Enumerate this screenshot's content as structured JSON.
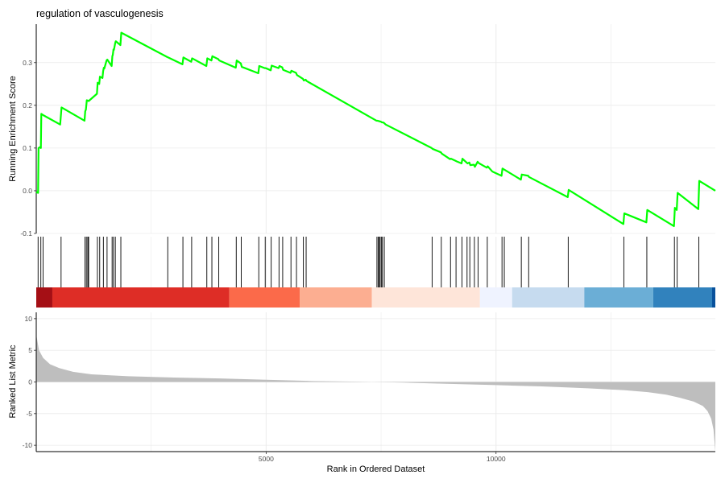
{
  "chart_data": {
    "type": "line",
    "title": "regulation of vasculogenesis",
    "xlabel": "Rank in Ordered Dataset",
    "x_ticks": [
      5000,
      10000
    ],
    "xlim": [
      0,
      14770
    ],
    "panels": {
      "enrichment": {
        "ylabel": "Running Enrichment Score",
        "ylim": [
          -0.1,
          0.39
        ],
        "y_ticks": [
          -0.1,
          0.0,
          0.1,
          0.2,
          0.3
        ],
        "y_tick_labels": [
          "-0.1",
          "0.0",
          "0.1",
          "0.2",
          "0.3"
        ],
        "series_color": "#00ff00",
        "x": [
          0,
          40,
          50,
          80,
          100,
          110,
          150,
          520,
          550,
          1050,
          1065,
          1080,
          1100,
          1140,
          1320,
          1335,
          1370,
          1385,
          1440,
          1455,
          1470,
          1480,
          1530,
          1545,
          1640,
          1655,
          1665,
          1680,
          1690,
          1720,
          1730,
          1830,
          1850,
          2850,
          2870,
          3180,
          3200,
          3370,
          3390,
          3700,
          3720,
          3810,
          3830,
          3960,
          3980,
          4340,
          4360,
          4450,
          4470,
          4830,
          4850,
          4970,
          4990,
          5100,
          5120,
          5270,
          5290,
          5350,
          5370,
          5530,
          5550,
          5650,
          5670,
          5800,
          5820,
          5860,
          5880,
          7400,
          7420,
          7450,
          7460,
          7480,
          7490,
          7520,
          7540,
          7560,
          7600,
          8600,
          8620,
          8800,
          8820,
          9000,
          9020,
          9120,
          9140,
          9250,
          9270,
          9360,
          9380,
          9420,
          9440,
          9520,
          9540,
          9600,
          9620,
          9800,
          9820,
          9920,
          9940,
          10120,
          10140,
          10540,
          10560,
          10700,
          10720,
          11560,
          11580,
          12770,
          12790,
          13270,
          13290,
          13870,
          13890,
          13930,
          13950,
          14400,
          14420,
          14770
        ],
        "y": [
          -0.003,
          -0.005,
          0.1,
          0.102,
          0.1,
          0.18,
          0.177,
          0.155,
          0.195,
          0.164,
          0.186,
          0.19,
          0.212,
          0.21,
          0.227,
          0.253,
          0.25,
          0.267,
          0.264,
          0.28,
          0.288,
          0.286,
          0.305,
          0.307,
          0.292,
          0.315,
          0.318,
          0.331,
          0.33,
          0.347,
          0.35,
          0.341,
          0.37,
          0.313,
          0.312,
          0.296,
          0.312,
          0.302,
          0.31,
          0.292,
          0.31,
          0.305,
          0.315,
          0.308,
          0.305,
          0.288,
          0.305,
          0.298,
          0.29,
          0.275,
          0.292,
          0.287,
          0.287,
          0.282,
          0.293,
          0.287,
          0.292,
          0.289,
          0.283,
          0.276,
          0.281,
          0.276,
          0.271,
          0.262,
          0.258,
          0.26,
          0.257,
          0.164,
          0.164,
          0.163,
          0.163,
          0.162,
          0.162,
          0.16,
          0.16,
          0.159,
          0.155,
          0.1,
          0.098,
          0.09,
          0.087,
          0.074,
          0.075,
          0.07,
          0.069,
          0.064,
          0.075,
          0.066,
          0.064,
          0.066,
          0.06,
          0.061,
          0.056,
          0.068,
          0.065,
          0.054,
          0.057,
          0.045,
          0.044,
          0.035,
          0.052,
          0.026,
          0.038,
          0.035,
          0.032,
          -0.015,
          0.002,
          -0.078,
          -0.053,
          -0.074,
          -0.045,
          -0.083,
          -0.04,
          -0.045,
          -0.005,
          -0.043,
          0.023,
          0.0
        ]
      },
      "hits": {
        "positions": [
          40,
          100,
          150,
          540,
          1060,
          1090,
          1120,
          1135,
          1140,
          1330,
          1380,
          1460,
          1540,
          1650,
          1680,
          1720,
          1840,
          2860,
          3190,
          3380,
          3710,
          3820,
          3970,
          4350,
          4460,
          4840,
          4980,
          5110,
          5280,
          5360,
          5540,
          5660,
          5810,
          5870,
          7410,
          7440,
          7460,
          7480,
          7510,
          7530,
          7570,
          8610,
          8810,
          9010,
          9130,
          9260,
          9370,
          9430,
          9530,
          9610,
          9810,
          10130,
          10180,
          10550,
          10710,
          11570,
          12780,
          13280,
          13880,
          13940,
          14410
        ],
        "color_bands": [
          {
            "from": 0,
            "to": 350,
            "color": "#a50f15"
          },
          {
            "from": 350,
            "to": 4200,
            "color": "#de2d26"
          },
          {
            "from": 4200,
            "to": 5730,
            "color": "#fb6a4a"
          },
          {
            "from": 5730,
            "to": 7300,
            "color": "#fcae91"
          },
          {
            "from": 7300,
            "to": 9650,
            "color": "#fee5d9"
          },
          {
            "from": 9650,
            "to": 10350,
            "color": "#eff3ff"
          },
          {
            "from": 10350,
            "to": 11920,
            "color": "#c6dbef"
          },
          {
            "from": 11920,
            "to": 13420,
            "color": "#6baed6"
          },
          {
            "from": 13420,
            "to": 14700,
            "color": "#3182bd"
          },
          {
            "from": 14700,
            "to": 14770,
            "color": "#08519c"
          }
        ]
      },
      "ranked": {
        "ylabel": "Ranked List Metric",
        "ylim": [
          -11,
          11
        ],
        "y_ticks": [
          -10,
          -5,
          0,
          5,
          10
        ],
        "y_tick_labels": [
          "-10",
          "-5",
          "0",
          "5",
          "10"
        ],
        "fill_color": "#bebebe",
        "x": [
          0,
          60,
          150,
          300,
          500,
          800,
          1200,
          2000,
          3000,
          4000,
          5000,
          6000,
          7000,
          7300,
          8000,
          9000,
          10000,
          11000,
          12000,
          12800,
          13300,
          13700,
          14000,
          14300,
          14500,
          14600,
          14680,
          14730,
          14770
        ],
        "y": [
          7.5,
          5.0,
          3.8,
          2.8,
          2.2,
          1.6,
          1.2,
          0.9,
          0.7,
          0.55,
          0.35,
          0.15,
          0.05,
          0.0,
          -0.1,
          -0.3,
          -0.5,
          -0.7,
          -1.0,
          -1.3,
          -1.6,
          -2.0,
          -2.5,
          -3.1,
          -3.8,
          -4.6,
          -5.8,
          -7.5,
          -11.0
        ]
      }
    }
  }
}
